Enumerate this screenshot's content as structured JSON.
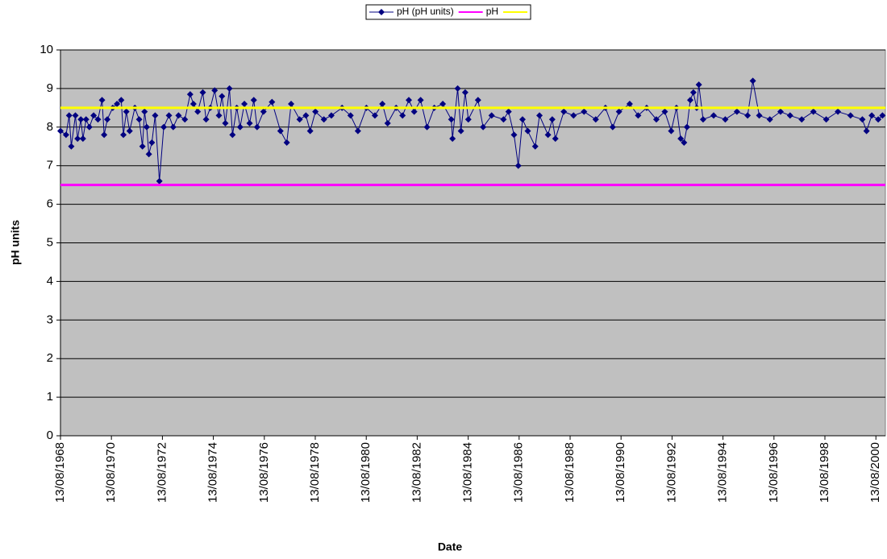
{
  "chart_data": {
    "type": "line",
    "x_label": "Date",
    "y_label": "pH units",
    "xlim": [
      "13/08/1968",
      "27/12/2000"
    ],
    "xticks": [
      "13/08/1968",
      "13/08/1970",
      "13/08/1972",
      "13/08/1974",
      "13/08/1976",
      "13/08/1978",
      "13/08/1980",
      "13/08/1982",
      "13/08/1984",
      "13/08/1986",
      "13/08/1988",
      "13/08/1990",
      "13/08/1992",
      "13/08/1994",
      "13/08/1996",
      "13/08/1998",
      "13/08/2000"
    ],
    "ylim": [
      0,
      10
    ],
    "yticks": [
      0,
      1,
      2,
      3,
      4,
      5,
      6,
      7,
      8,
      9,
      10
    ],
    "grid": true,
    "series": [
      {
        "name": "pH (pH units)",
        "color": "#000080",
        "marker": "diamond",
        "x": [
          "13/08/1968",
          "01/11/1968",
          "15/12/1968",
          "15/01/1969",
          "15/03/1969",
          "15/04/1969",
          "01/06/1969",
          "01/07/1969",
          "15/08/1969",
          "01/10/1969",
          "01/12/1969",
          "01/02/1970",
          "01/04/1970",
          "01/05/1970",
          "15/06/1970",
          "01/09/1970",
          "01/11/1970",
          "01/01/1971",
          "01/02/1971",
          "15/03/1971",
          "01/05/1971",
          "15/07/1971",
          "15/09/1971",
          "01/11/1971",
          "01/12/1971",
          "01/01/1972",
          "01/02/1972",
          "15/03/1972",
          "01/05/1972",
          "01/07/1972",
          "01/09/1972",
          "15/11/1972",
          "15/01/1973",
          "01/04/1973",
          "01/07/1973",
          "15/09/1973",
          "01/11/1973",
          "01/01/1974",
          "15/03/1974",
          "01/05/1974",
          "01/07/1974",
          "01/09/1974",
          "01/11/1974",
          "15/12/1974",
          "01/02/1975",
          "01/04/1975",
          "15/05/1975",
          "15/07/1975",
          "01/09/1975",
          "01/11/1975",
          "15/01/1976",
          "15/03/1976",
          "01/05/1976",
          "01/08/1976",
          "01/12/1976",
          "01/04/1977",
          "01/07/1977",
          "01/09/1977",
          "01/01/1978",
          "01/04/1978",
          "01/06/1978",
          "15/08/1978",
          "15/12/1978",
          "01/04/1979",
          "01/09/1979",
          "01/01/1980",
          "15/04/1980",
          "15/08/1980",
          "15/12/1980",
          "01/04/1981",
          "15/06/1981",
          "15/10/1981",
          "15/01/1982",
          "15/04/1982",
          "01/07/1982",
          "01/10/1982",
          "01/01/1983",
          "15/04/1983",
          "15/08/1983",
          "15/12/1983",
          "01/01/1984",
          "15/03/1984",
          "01/05/1984",
          "01/07/1984",
          "15/08/1984",
          "01/01/1985",
          "15/03/1985",
          "15/07/1985",
          "01/01/1986",
          "15/03/1986",
          "01/06/1986",
          "01/08/1986",
          "01/10/1986",
          "15/12/1986",
          "01/04/1987",
          "01/06/1987",
          "01/10/1987",
          "01/12/1987",
          "15/01/1988",
          "15/05/1988",
          "01/10/1988",
          "01/03/1989",
          "15/08/1989",
          "01/01/1990",
          "15/04/1990",
          "15/07/1990",
          "15/12/1990",
          "15/04/1991",
          "15/08/1991",
          "01/01/1992",
          "01/05/1992",
          "01/08/1992",
          "15/10/1992",
          "15/12/1992",
          "01/02/1993",
          "15/03/1993",
          "01/05/1993",
          "15/06/1993",
          "01/08/1993",
          "01/09/1993",
          "01/11/1993",
          "01/04/1994",
          "15/09/1994",
          "01/03/1995",
          "01/08/1995",
          "15/10/1995",
          "15/01/1996",
          "15/06/1996",
          "15/11/1996",
          "01/04/1997",
          "15/09/1997",
          "01/03/1998",
          "01/09/1998",
          "15/02/1999",
          "15/08/1999",
          "01/02/2000",
          "01/04/2000",
          "15/06/2000",
          "15/09/2000",
          "15/11/2000"
        ],
        "values": [
          7.9,
          7.8,
          8.3,
          7.5,
          8.3,
          7.7,
          8.2,
          7.7,
          8.2,
          8.0,
          8.3,
          8.2,
          8.7,
          7.8,
          8.2,
          8.5,
          8.6,
          8.7,
          7.8,
          8.4,
          7.9,
          8.5,
          8.2,
          7.5,
          8.4,
          8.0,
          7.3,
          7.6,
          8.3,
          6.6,
          8.0,
          8.3,
          8.0,
          8.3,
          8.2,
          8.85,
          8.6,
          8.4,
          8.9,
          8.2,
          8.5,
          8.95,
          8.3,
          8.8,
          8.1,
          9.0,
          7.8,
          8.5,
          8.0,
          8.6,
          8.1,
          8.7,
          8.0,
          8.4,
          8.65,
          7.9,
          7.6,
          8.6,
          8.2,
          8.3,
          7.9,
          8.4,
          8.2,
          8.3,
          8.5,
          8.3,
          7.9,
          8.5,
          8.3,
          8.6,
          8.1,
          8.5,
          8.3,
          8.7,
          8.4,
          8.7,
          8.0,
          8.5,
          8.6,
          8.2,
          7.7,
          9.0,
          7.9,
          8.9,
          8.2,
          8.7,
          8.0,
          8.3,
          8.2,
          8.4,
          7.8,
          7.0,
          8.2,
          7.9,
          7.5,
          8.3,
          7.8,
          8.2,
          7.7,
          8.4,
          8.3,
          8.4,
          8.2,
          8.5,
          8.0,
          8.4,
          8.6,
          8.3,
          8.5,
          8.2,
          8.4,
          7.9,
          8.5,
          7.7,
          7.6,
          8.0,
          8.7,
          8.9,
          8.5,
          9.1,
          8.2,
          8.3,
          8.2,
          8.4,
          8.3,
          9.2,
          8.3,
          8.2,
          8.4,
          8.3,
          8.2,
          8.4,
          8.2,
          8.4,
          8.3,
          8.2,
          7.9,
          8.3,
          8.2,
          8.3
        ]
      },
      {
        "name": "pH",
        "color": "#ff00ff",
        "x": [
          "13/08/1968",
          "27/12/2000"
        ],
        "values": [
          6.5,
          6.5
        ]
      },
      {
        "color": "#ffff00",
        "x": [
          "13/08/1968",
          "27/12/2000"
        ],
        "values": [
          8.5,
          8.5
        ]
      }
    ]
  }
}
